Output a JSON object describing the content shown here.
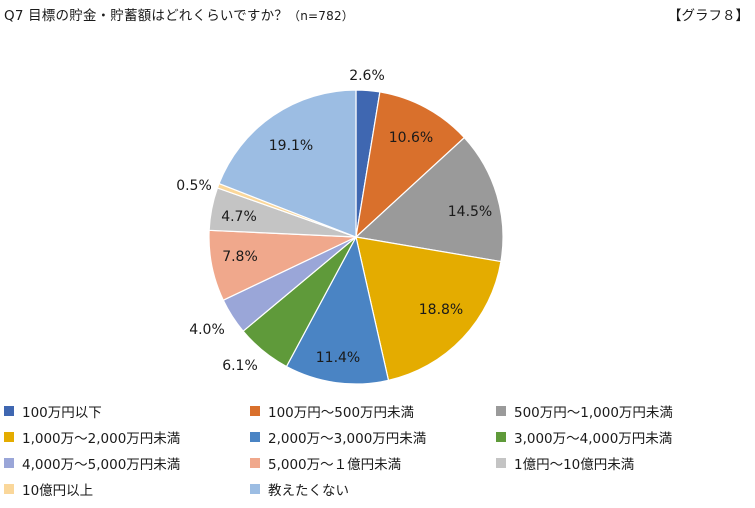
{
  "header": {
    "question": "Q7 目標の貯金・貯蓄額はどれくらいですか？",
    "sample_size": "（n=782）",
    "graph_id": "【グラフ８】"
  },
  "chart_data": {
    "type": "pie",
    "categories": [
      "100万円以下",
      "100万円～500万円未満",
      "500万円～1,000万円未満",
      "1,000万～2,000万円未満",
      "2,000万～3,000万円未満",
      "3,000万～4,000万円未満",
      "4,000万～5,000万円未満",
      "5,000万～１億円未満",
      "1億円～10億円未満",
      "10億円以上",
      "教えたくない"
    ],
    "values": [
      2.6,
      10.6,
      14.5,
      18.8,
      11.4,
      6.1,
      4.0,
      7.8,
      4.7,
      0.5,
      19.1
    ],
    "labels": [
      "2.6%",
      "10.6%",
      "14.5%",
      "18.8%",
      "11.4%",
      "6.1%",
      "4.0%",
      "7.8%",
      "4.7%",
      "0.5%",
      "19.1%"
    ],
    "colors": [
      "#3f67b1",
      "#d9702c",
      "#9a9a9a",
      "#e4ac00",
      "#4a84c4",
      "#5f9a3a",
      "#9aa6d8",
      "#f0a88c",
      "#c4c4c4",
      "#fad79a",
      "#9cbde3"
    ],
    "start_angle": "12 o'clock",
    "direction": "clockwise",
    "legend_position": "bottom"
  }
}
